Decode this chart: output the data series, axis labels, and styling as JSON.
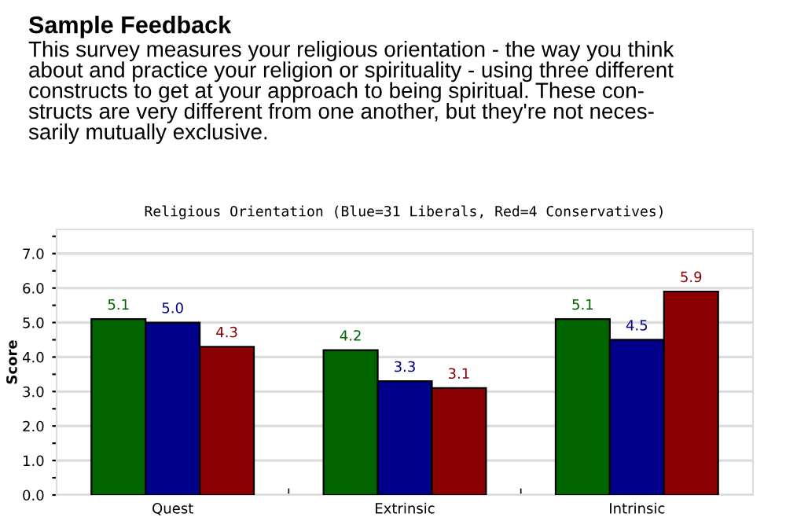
{
  "chart_data": {
    "type": "bar",
    "annotations": [
      "Sample Feedback",
      "This survey measures your religious orientation - the way you think\nabout and practice your religion or spirituality - using three different\nconstructs to get at your approach to being spiritual. These con-\nstructs are very different from one another, but they're not neces-\nsarily mutually exclusive."
    ],
    "title": "Religious Orientation (Blue=31 Liberals, Red=4 Conservatives)",
    "ylabel": "Score",
    "categories": [
      "Quest",
      "Extrinsic",
      "Intrinsic"
    ],
    "series": [
      {
        "color": "#006400",
        "values": [
          5.1,
          4.2,
          5.1
        ],
        "value_labels": [
          "5.1",
          "4.2",
          "5.1"
        ]
      },
      {
        "color": "#00008b",
        "values": [
          5.0,
          3.3,
          4.5
        ],
        "value_labels": [
          "5.0",
          "3.3",
          "4.5"
        ]
      },
      {
        "color": "#8b0000",
        "values": [
          4.3,
          3.1,
          5.9
        ],
        "value_labels": [
          "4.3",
          "3.1",
          "5.9"
        ]
      }
    ],
    "ylim": [
      0,
      7.7
    ],
    "yticks": [
      {
        "value": 0,
        "label": "0.0"
      },
      {
        "value": 0.5,
        "label": null
      },
      {
        "value": 1,
        "label": "1.0"
      },
      {
        "value": 1.5,
        "label": null
      },
      {
        "value": 2,
        "label": "2.0"
      },
      {
        "value": 2.5,
        "label": null
      },
      {
        "value": 3,
        "label": "3.0"
      },
      {
        "value": 3.5,
        "label": null
      },
      {
        "value": 4,
        "label": "4.0"
      },
      {
        "value": 4.5,
        "label": null
      },
      {
        "value": 5,
        "label": "5.0"
      },
      {
        "value": 5.5,
        "label": null
      },
      {
        "value": 6,
        "label": "6.0"
      },
      {
        "value": 6.5,
        "label": null
      },
      {
        "value": 7,
        "label": "7.0"
      },
      {
        "value": 7.5,
        "label": null
      }
    ],
    "grid": "y",
    "legend": false
  }
}
